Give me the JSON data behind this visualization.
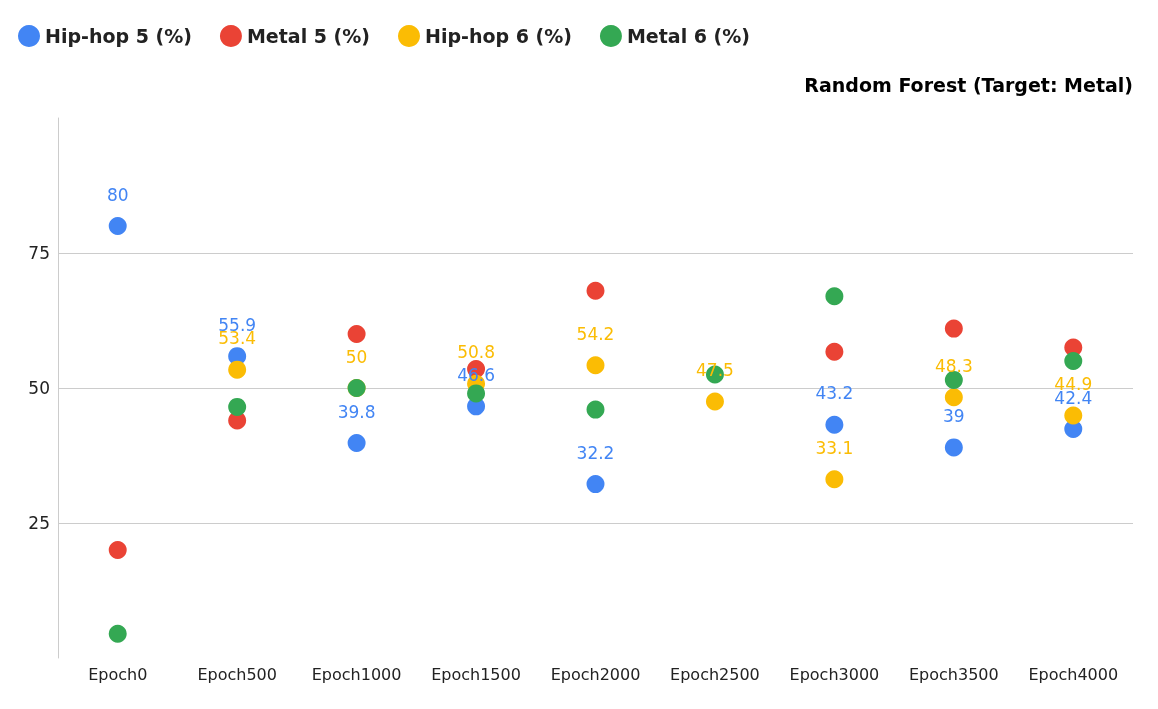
{
  "chart_data": {
    "type": "scatter",
    "title": "Random Forest (Target: Metal)",
    "categories": [
      "Epoch0",
      "Epoch500",
      "Epoch1000",
      "Epoch1500",
      "Epoch2000",
      "Epoch2500",
      "Epoch3000",
      "Epoch3500",
      "Epoch4000"
    ],
    "series": [
      {
        "name": "Hip-hop 5 (%)",
        "color": "#4285f4",
        "values": [
          80,
          55.9,
          39.8,
          46.6,
          32.2,
          null,
          43.2,
          39,
          42.4
        ],
        "value_labels": [
          "80",
          "55.9",
          "39.8",
          "46.6",
          "32.2",
          null,
          "43.2",
          "39",
          "42.4"
        ]
      },
      {
        "name": "Metal 5 (%)",
        "color": "#ea4335",
        "values": [
          20,
          44,
          60,
          53.5,
          68,
          null,
          56.7,
          61,
          57.5
        ]
      },
      {
        "name": "Hip-hop 6 (%)",
        "color": "#fbbc04",
        "values": [
          null,
          53.4,
          50,
          50.8,
          54.2,
          47.5,
          33.1,
          48.3,
          44.9
        ],
        "value_labels": [
          null,
          "53.4",
          "50",
          "50.8",
          "54.2",
          "47.5",
          "33.1",
          "48.3",
          "44.9"
        ]
      },
      {
        "name": "Metal 6 (%)",
        "color": "#34a853",
        "values": [
          4.5,
          46.5,
          50,
          49,
          46,
          52.5,
          67,
          51.5,
          55
        ]
      }
    ],
    "ylim": [
      0,
      100
    ],
    "yticks": [
      25,
      50,
      75
    ],
    "grid": "y",
    "legend": "top left",
    "marker": "circle"
  }
}
